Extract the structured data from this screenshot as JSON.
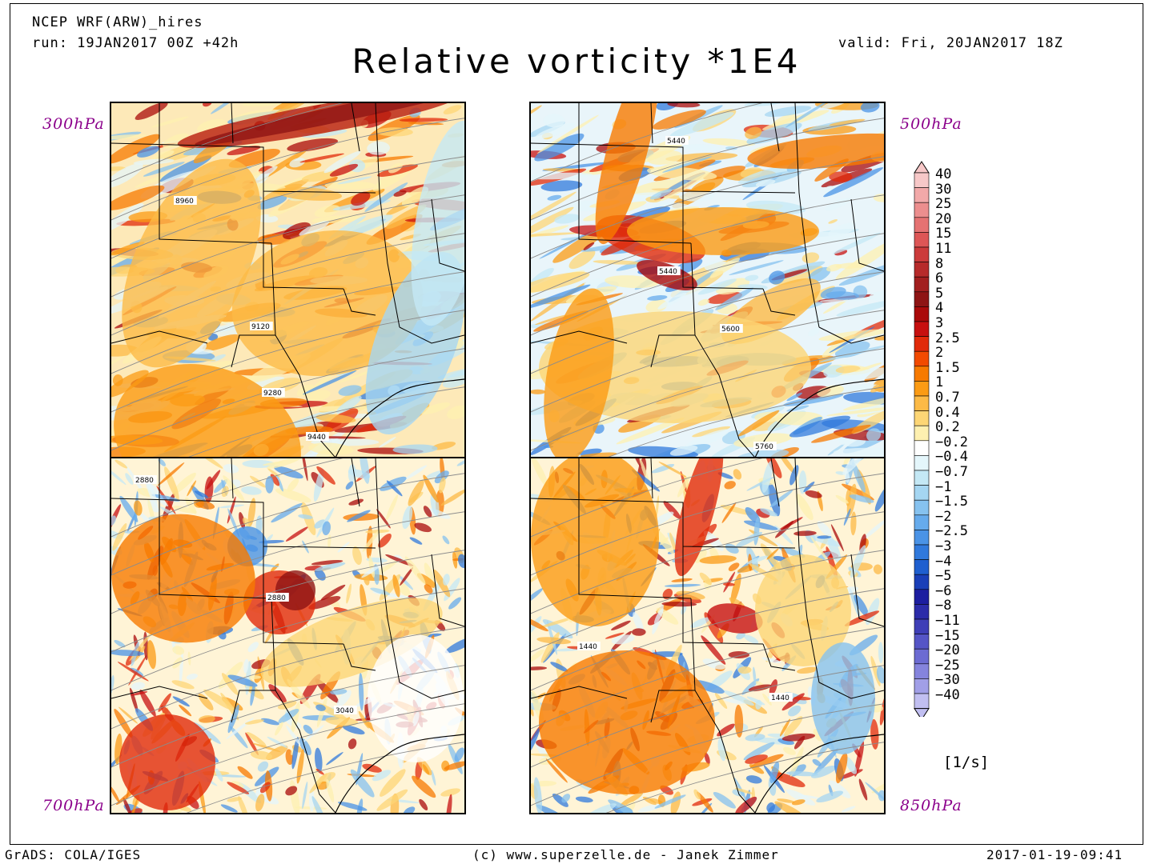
{
  "header": {
    "model": "NCEP WRF(ARW)_hires",
    "run": "run: 19JAN2017 00Z +42h",
    "valid": "valid: Fri, 20JAN2017 18Z",
    "title": "Relative vorticity *1E4"
  },
  "panels": [
    {
      "level": "300hPa",
      "contours": [
        "8960",
        "9120",
        "9280",
        "9440"
      ]
    },
    {
      "level": "500hPa",
      "contours": [
        "5440",
        "5440",
        "5600",
        "5760"
      ]
    },
    {
      "level": "700hPa",
      "contours": [
        "2880",
        "2880",
        "3040"
      ]
    },
    {
      "level": "850hPa",
      "contours": [
        "1440",
        "1440"
      ]
    }
  ],
  "colorbar": {
    "labels": [
      "40",
      "30",
      "25",
      "20",
      "15",
      "11",
      "8",
      "6",
      "5",
      "4",
      "3",
      "2.5",
      "2",
      "1.5",
      "1",
      "0.7",
      "0.4",
      "0.2",
      "−0.2",
      "−0.4",
      "−0.7",
      "−1",
      "−1.5",
      "−2",
      "−2.5",
      "−3",
      "−4",
      "−5",
      "−6",
      "−8",
      "−11",
      "−15",
      "−20",
      "−25",
      "−30",
      "−40"
    ],
    "colors": [
      "#f7c8c8",
      "#f2a9a9",
      "#ec8e8e",
      "#e57272",
      "#dd5656",
      "#cc3b3b",
      "#b72b2b",
      "#a21f1f",
      "#8e1414",
      "#aa0a0a",
      "#c71010",
      "#e12a0a",
      "#f24a00",
      "#f77a00",
      "#fb9b14",
      "#fcba46",
      "#fdd675",
      "#fef0b0",
      "#ffffff",
      "#e4f6fb",
      "#c4e8f5",
      "#a5d6f2",
      "#86c2ef",
      "#66abec",
      "#4a93e6",
      "#3079dc",
      "#1f5fcf",
      "#1a3fb8",
      "#1d1ea0",
      "#2c2ca9",
      "#3f3fb7",
      "#5555c6",
      "#6c6bd2",
      "#8584dd",
      "#a19fe7",
      "#c1bff1"
    ],
    "units": "[1/s]"
  },
  "footer": {
    "left": "GrADS: COLA/IGES",
    "center": "(c) www.superzelle.de - Janek Zimmer",
    "right": "2017-01-19-09:41"
  }
}
